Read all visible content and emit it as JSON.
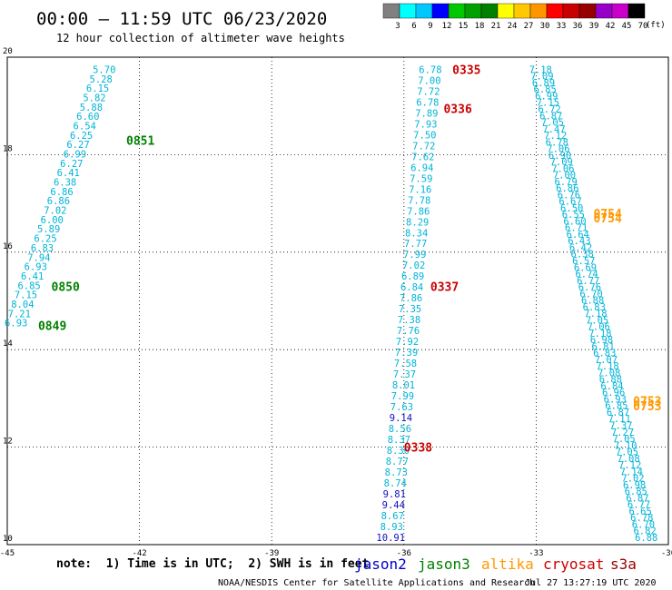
{
  "header": {
    "title": "00:00 – 11:59 UTC 06/23/2020",
    "subtitle": "12 hour collection of altimeter wave heights"
  },
  "colorbar": {
    "labels": [
      "3",
      "6",
      "9",
      "12",
      "15",
      "18",
      "21",
      "24",
      "27",
      "30",
      "33",
      "36",
      "39",
      "42",
      "45",
      "70"
    ],
    "unit": "(ft)",
    "colors": [
      "#808080",
      "#00ffff",
      "#00c8ff",
      "#0000ff",
      "#00c800",
      "#00a000",
      "#008000",
      "#ffff00",
      "#ffc800",
      "#ff9600",
      "#ff0000",
      "#c80000",
      "#960000",
      "#9600c8",
      "#c800c8",
      "#000000"
    ]
  },
  "footer": {
    "note": "note:  1) Time is in UTC;  2) SWH is in feet",
    "satellites": [
      {
        "name": "jason2",
        "color": "#0000cc"
      },
      {
        "name": "jason3",
        "color": "#008000"
      },
      {
        "name": "altika",
        "color": "#ff9900"
      },
      {
        "name": "cryosat",
        "color": "#cc0000"
      },
      {
        "name": "s3a",
        "color": "#990000"
      }
    ],
    "credit": "NOAA/NESDIS Center for Satellite Applications and Research",
    "timestamp": "Jul 27 13:27:19 UTC 2020"
  },
  "chart_data": {
    "type": "scatter",
    "xlim": [
      -45,
      -30
    ],
    "ylim": [
      10,
      20
    ],
    "xticks": [
      -45,
      -42,
      -39,
      -36,
      -33,
      -30
    ],
    "yticks": [
      10,
      12,
      14,
      16,
      18,
      20
    ],
    "x_tick_labels": [
      "-45",
      "-42",
      "-39",
      "-36",
      "-33",
      "-30"
    ],
    "y_tick_labels": [
      "10",
      "12",
      "14",
      "16",
      "18",
      "20"
    ],
    "grid": true,
    "series": [
      {
        "name": "jason3",
        "label_color": "#008000",
        "point_color": "#00b4d8",
        "x_start": -42.8,
        "y_start": 19.75,
        "x_end": -44.8,
        "y_end": 14.55,
        "values": [
          "5.70",
          "5.28",
          "6.15",
          "5.82",
          "5.88",
          "6.60",
          "6.54",
          "6.25",
          "6.27",
          "6.99",
          "6.27",
          "6.41",
          "6.38",
          "6.86",
          "6.86",
          "7.02",
          "6.00",
          "5.89",
          "6.25",
          "6.83",
          "7.94",
          "6.93",
          "6.41",
          "6.85",
          "7.15",
          "8.04",
          "7.21",
          "6.93"
        ],
        "time_labels": [
          {
            "text": "0851",
            "x": -42.3,
            "y": 18.3
          },
          {
            "text": "0850",
            "x": -44.0,
            "y": 15.3
          },
          {
            "text": "0849",
            "x": -44.3,
            "y": 14.5
          }
        ]
      },
      {
        "name": "cryosat",
        "label_color": "#cc0000",
        "point_color": "#00b4d8",
        "x_start": -35.4,
        "y_start": 19.75,
        "x_end": -36.3,
        "y_end": 10.15,
        "values": [
          "6.78",
          "7.00",
          "7.72",
          "6.78",
          "7.89",
          "7.93",
          "7.50",
          "7.72",
          "7.62",
          "6.94",
          "7.59",
          "7.16",
          "7.78",
          "7.86",
          "8.29",
          "8.34",
          "7.77",
          "7.99",
          "7.02",
          "6.89",
          "6.84",
          "7.86",
          "7.35",
          "7.38",
          "7.76",
          "7.92",
          "7.39",
          "7.58",
          "7.37",
          "8.01",
          "7.99",
          "7.63",
          "9.14",
          "8.56",
          "8.37",
          "8.30",
          "8.77",
          "8.73",
          "8.74",
          "9.81",
          "9.44",
          "8.67",
          "8.93",
          "10.91"
        ],
        "highlight_values": [
          "9.14",
          "9.81",
          "9.44",
          "10.91"
        ],
        "highlight_color": "#1010c0",
        "time_labels": [
          {
            "text": "0335",
            "x": -34.9,
            "y": 19.75
          },
          {
            "text": "0336",
            "x": -35.1,
            "y": 18.95
          },
          {
            "text": "0337",
            "x": -35.4,
            "y": 15.3
          },
          {
            "text": "0338",
            "x": -36.0,
            "y": 12.0
          }
        ]
      },
      {
        "name": "altika",
        "label_color": "#ff9900",
        "point_color": "#00b4d8",
        "x_start": -32.9,
        "y_start": 19.75,
        "x_end": -30.5,
        "y_end": 10.15,
        "values": [
          "7.18",
          "7.09",
          "6.89",
          "6.85",
          "6.99",
          "7.15",
          "6.72",
          "6.87",
          "7.05",
          "7.47",
          "7.12",
          "6.78",
          "7.06",
          "6.90",
          "7.09",
          "7.06",
          "7.00",
          "6.79",
          "6.86",
          "6.76",
          "6.67",
          "6.50",
          "6.55",
          "6.60",
          "6.71",
          "6.64",
          "6.43",
          "6.42",
          "6.38",
          "6.57",
          "6.69",
          "6.74",
          "6.77",
          "6.76",
          "6.70",
          "6.88",
          "6.83",
          "7.18",
          "7.05",
          "7.06",
          "7.18",
          "6.98",
          "6.81",
          "6.83",
          "7.07",
          "7.18",
          "7.08",
          "6.88",
          "6.84",
          "6.96",
          "6.93",
          "6.85",
          "6.87",
          "7.11",
          "7.37",
          "7.27",
          "7.05",
          "7.10",
          "7.05",
          "7.08",
          "7.12",
          "7.14",
          "7.02",
          "6.98",
          "6.85",
          "6.87",
          "6.77",
          "6.65",
          "6.78",
          "6.70",
          "6.82",
          "6.88"
        ],
        "time_labels": [
          {
            "text": "0754",
            "x": -31.7,
            "y": 16.8
          },
          {
            "text": "0754",
            "x": -31.7,
            "y": 16.7
          },
          {
            "text": "0753",
            "x": -30.8,
            "y": 12.95
          },
          {
            "text": "0753",
            "x": -30.8,
            "y": 12.85
          }
        ]
      }
    ]
  }
}
